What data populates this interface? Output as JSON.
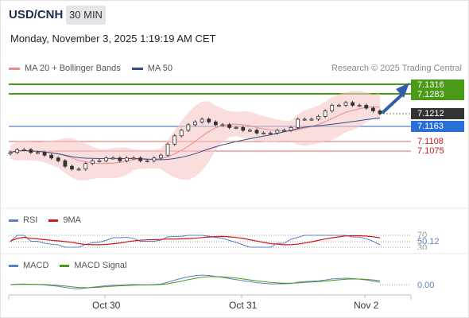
{
  "header": {
    "symbol": "USD/CNH",
    "timeframe": "30 MIN",
    "datetime": "Monday, November 3, 2025 1:19:19 AM CET"
  },
  "legend": {
    "ma20_label": "MA 20 + Bollinger Bands",
    "ma50_label": "MA 50",
    "credit": "Research © 2025 Trading Central"
  },
  "colors": {
    "green": "#4a9a17",
    "blue_line": "#5b7fc4",
    "red": "#e06666",
    "current_tag": "#333333",
    "ma50_tag": "#2a6fd6",
    "arrow": "#2f5fa8",
    "rsi": "#5b7fc4",
    "rsi_ma": "#d0161b",
    "macd": "#5b7fc4",
    "macd_signal": "#4a9a17"
  },
  "price_levels": {
    "r2": "7.1316",
    "r1": "7.1283",
    "current": "7.1212",
    "ma50": "7.1163",
    "s1": "7.1108",
    "s2": "7.1075"
  },
  "rsi": {
    "label": "RSI",
    "ma_label": "9MA",
    "level_high": "70",
    "value": "50.12",
    "level_low": "30"
  },
  "macd": {
    "label": "MACD",
    "signal_label": "MACD Signal",
    "value": "0.00"
  },
  "x_axis": {
    "labels": [
      "Oct 30",
      "Oct 31",
      "Nov 2"
    ]
  },
  "chart_data": {
    "type": "candlestick",
    "instrument": "USD/CNH",
    "interval": "30 MIN",
    "close_series": [
      7.107,
      7.108,
      7.108,
      7.107,
      7.107,
      7.106,
      7.105,
      7.104,
      7.102,
      7.101,
      7.101,
      7.103,
      7.104,
      7.104,
      7.105,
      7.105,
      7.104,
      7.105,
      7.105,
      7.104,
      7.104,
      7.105,
      7.106,
      7.11,
      7.113,
      7.115,
      7.117,
      7.118,
      7.119,
      7.118,
      7.117,
      7.117,
      7.116,
      7.116,
      7.115,
      7.115,
      7.114,
      7.114,
      7.114,
      7.115,
      7.115,
      7.116,
      7.119,
      7.119,
      7.119,
      7.12,
      7.122,
      7.124,
      7.124,
      7.125,
      7.124,
      7.124,
      7.123,
      7.122,
      7.121
    ],
    "levels": [
      7.1316,
      7.1283,
      7.1212,
      7.1163,
      7.1108,
      7.1075
    ]
  }
}
